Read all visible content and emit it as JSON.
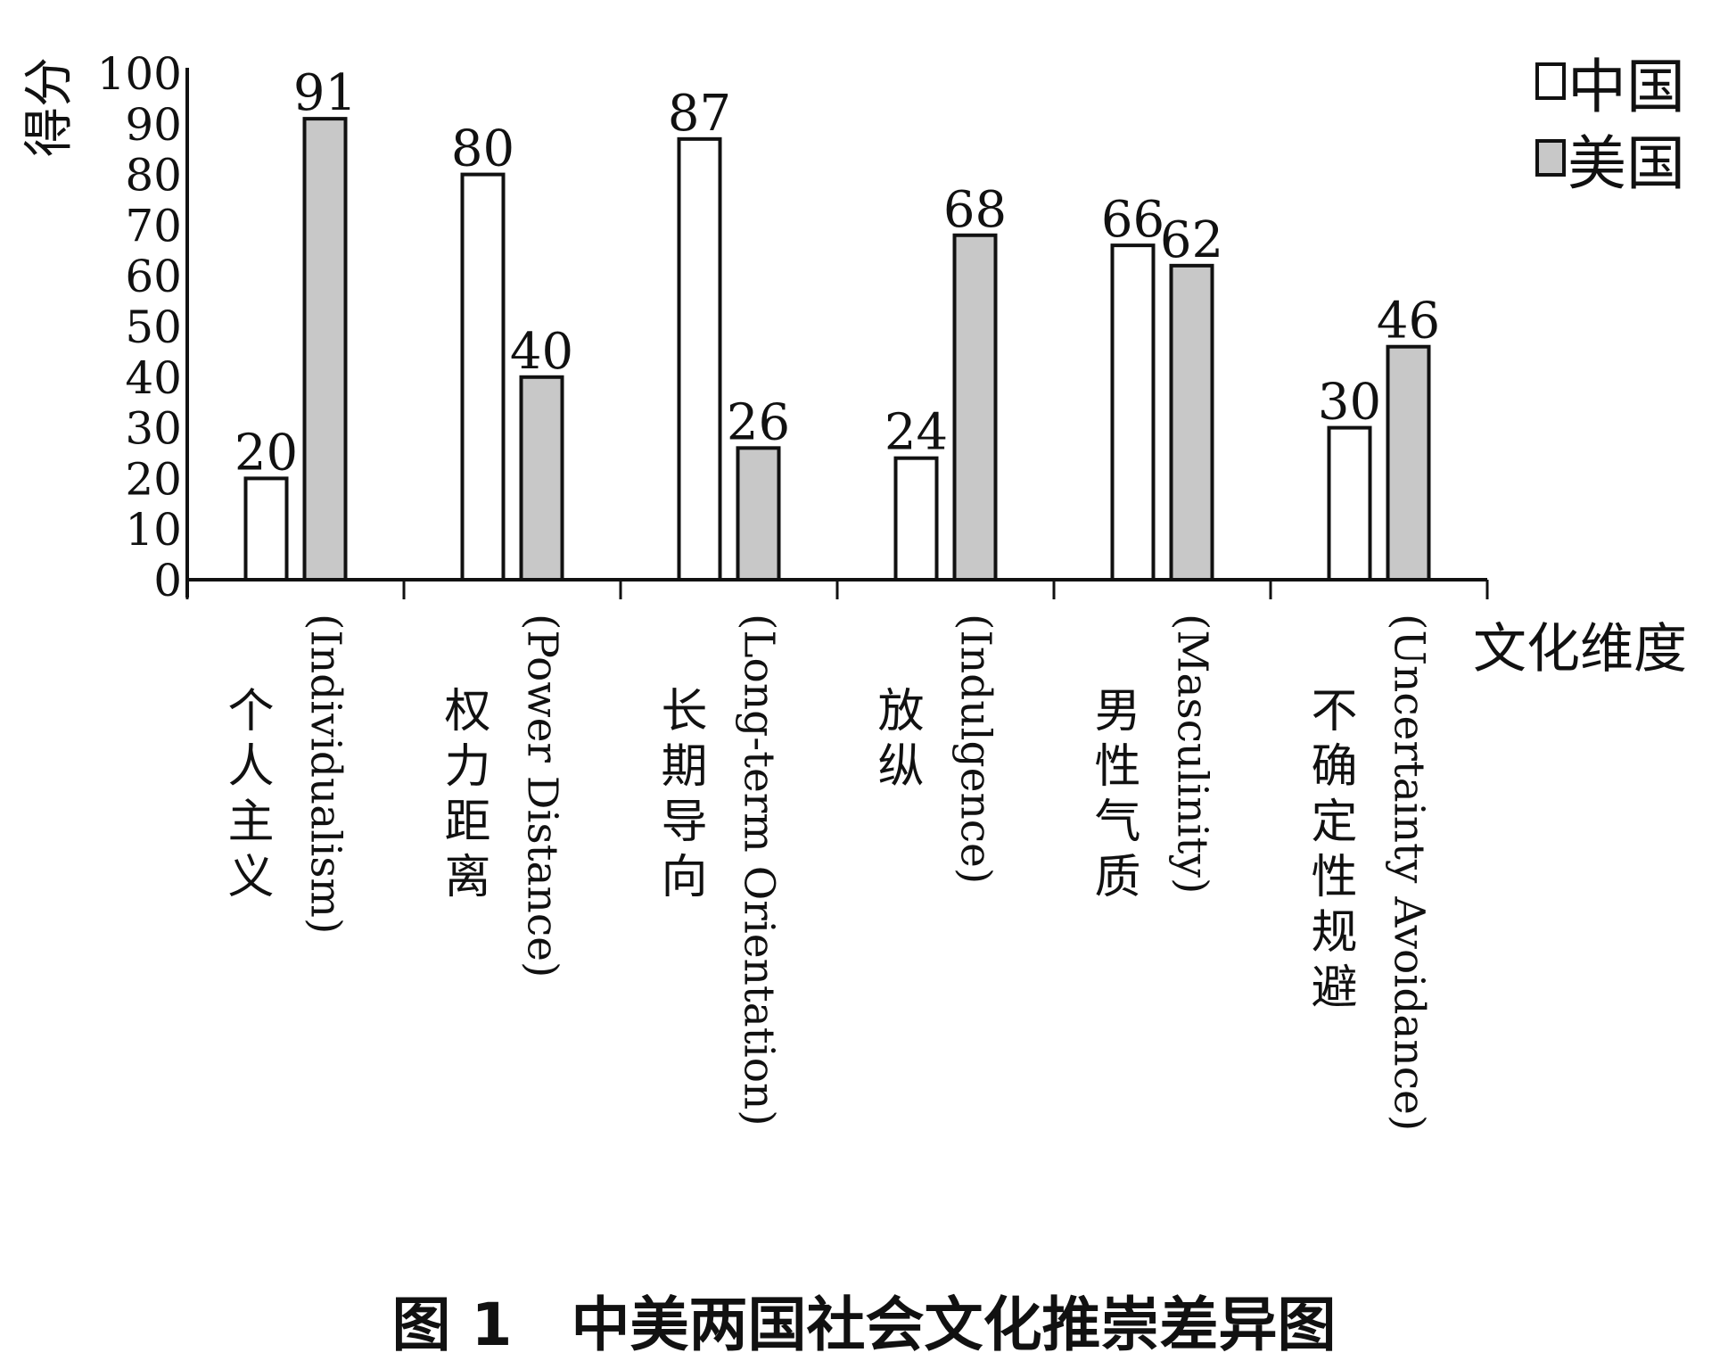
{
  "chart_data": {
    "type": "bar",
    "title": "图 1　中美两国社会文化推崇差异图",
    "ylabel": "得分",
    "xlabel": "文化维度",
    "ylim": [
      0,
      100
    ],
    "yticks": [
      0,
      10,
      20,
      30,
      40,
      50,
      60,
      70,
      80,
      90,
      100
    ],
    "grid": false,
    "legend_position": "top-right",
    "categories": [
      {
        "cn": "个人主义",
        "en": "(Individualism)"
      },
      {
        "cn": "权力距离",
        "en": "(Power Distance)"
      },
      {
        "cn": "长期导向",
        "en": "(Long-term Orientation)"
      },
      {
        "cn": "放纵",
        "en": "(Indulgence)"
      },
      {
        "cn": "男性气质",
        "en": "(Masculinity)"
      },
      {
        "cn": "不确定性规避",
        "en": "(Uncertainty Avoidance)"
      }
    ],
    "series": [
      {
        "name": "中国",
        "color": "#ffffff",
        "values": [
          20,
          80,
          87,
          24,
          66,
          30
        ]
      },
      {
        "name": "美国",
        "color": "#c8c8c8",
        "values": [
          91,
          40,
          26,
          68,
          62,
          46
        ]
      }
    ]
  }
}
